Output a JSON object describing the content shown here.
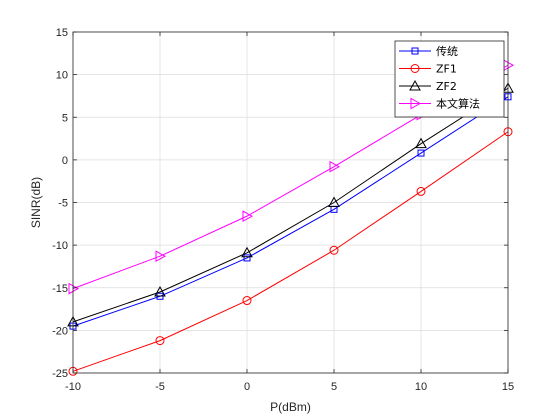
{
  "chart_data": {
    "type": "line",
    "xlabel": "P(dBm)",
    "ylabel": "SINR(dB)",
    "x": [
      -10,
      -5,
      0,
      5,
      10,
      15
    ],
    "xlim": [
      -10,
      15
    ],
    "ylim": [
      -25,
      15
    ],
    "xticks": [
      -10,
      -5,
      0,
      5,
      10,
      15
    ],
    "yticks": [
      -25,
      -20,
      -15,
      -10,
      -5,
      0,
      5,
      10,
      15
    ],
    "grid": true,
    "legend_position": "top-right",
    "series": [
      {
        "name": "传统",
        "color": "#0000ff",
        "marker": "square",
        "values": [
          -19.5,
          -16.0,
          -11.5,
          -5.8,
          0.8,
          7.4
        ]
      },
      {
        "name": "ZF1",
        "color": "#ff0000",
        "marker": "circle",
        "values": [
          -24.8,
          -21.2,
          -16.5,
          -10.6,
          -3.7,
          3.3
        ]
      },
      {
        "name": "ZF2",
        "color": "#000000",
        "marker": "triangle-up",
        "values": [
          -19.0,
          -15.5,
          -10.9,
          -5.0,
          1.9,
          8.4
        ]
      },
      {
        "name": "本文算法",
        "color": "#ff00ff",
        "marker": "triangle-right",
        "values": [
          -15.1,
          -11.3,
          -6.6,
          -0.8,
          5.3,
          11.1
        ]
      }
    ]
  }
}
